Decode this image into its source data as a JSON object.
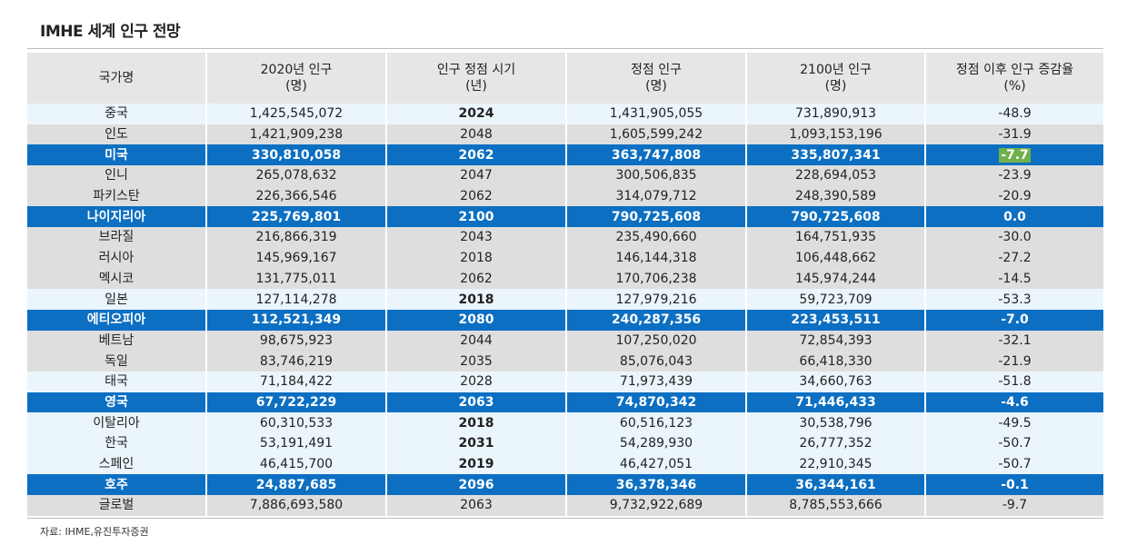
{
  "title": "IMHE 세계 인구 전망",
  "headers": [
    [
      "국가명",
      ""
    ],
    [
      "2020년 인구",
      "(명)"
    ],
    [
      "인구 정점 시기",
      "(년)"
    ],
    [
      "정점 인구",
      "(명)"
    ],
    [
      "2100년 인구",
      "(명)"
    ],
    [
      "정점 이후 인구 증감율",
      "(%)"
    ]
  ],
  "rows": [
    {
      "style": "light",
      "country": "중국",
      "pop2020": "1,425,545,072",
      "peak_year": "2024",
      "peak_year_bold": true,
      "peak_pop": "1,431,905,055",
      "pop2100": "731,890,913",
      "change": "-48.9"
    },
    {
      "style": "gray",
      "country": "인도",
      "pop2020": "1,421,909,238",
      "peak_year": "2048",
      "peak_pop": "1,605,599,242",
      "pop2100": "1,093,153,196",
      "change": "-31.9"
    },
    {
      "style": "blue",
      "country": "미국",
      "pop2020": "330,810,058",
      "peak_year": "2062",
      "peak_pop": "363,747,808",
      "pop2100": "335,807,341",
      "change": "-7.7",
      "change_highlight": true
    },
    {
      "style": "gray",
      "country": "인니",
      "pop2020": "265,078,632",
      "peak_year": "2047",
      "peak_pop": "300,506,835",
      "pop2100": "228,694,053",
      "change": "-23.9"
    },
    {
      "style": "gray",
      "country": "파키스탄",
      "pop2020": "226,366,546",
      "peak_year": "2062",
      "peak_pop": "314,079,712",
      "pop2100": "248,390,589",
      "change": "-20.9"
    },
    {
      "style": "blue",
      "country": "나이지리아",
      "pop2020": "225,769,801",
      "peak_year": "2100",
      "peak_pop": "790,725,608",
      "pop2100": "790,725,608",
      "change": "0.0"
    },
    {
      "style": "gray",
      "country": "브라질",
      "pop2020": "216,866,319",
      "peak_year": "2043",
      "peak_pop": "235,490,660",
      "pop2100": "164,751,935",
      "change": "-30.0"
    },
    {
      "style": "gray",
      "country": "러시아",
      "pop2020": "145,969,167",
      "peak_year": "2018",
      "peak_pop": "146,144,318",
      "pop2100": "106,448,662",
      "change": "-27.2"
    },
    {
      "style": "gray",
      "country": "멕시코",
      "pop2020": "131,775,011",
      "peak_year": "2062",
      "peak_pop": "170,706,238",
      "pop2100": "145,974,244",
      "change": "-14.5"
    },
    {
      "style": "light",
      "country": "일본",
      "pop2020": "127,114,278",
      "peak_year": "2018",
      "peak_year_bold": true,
      "peak_pop": "127,979,216",
      "pop2100": "59,723,709",
      "change": "-53.3"
    },
    {
      "style": "blue",
      "country": "에티오피아",
      "pop2020": "112,521,349",
      "peak_year": "2080",
      "peak_pop": "240,287,356",
      "pop2100": "223,453,511",
      "change": "-7.0"
    },
    {
      "style": "gray",
      "country": "베트남",
      "pop2020": "98,675,923",
      "peak_year": "2044",
      "peak_pop": "107,250,020",
      "pop2100": "72,854,393",
      "change": "-32.1"
    },
    {
      "style": "gray",
      "country": "독일",
      "pop2020": "83,746,219",
      "peak_year": "2035",
      "peak_pop": "85,076,043",
      "pop2100": "66,418,330",
      "change": "-21.9"
    },
    {
      "style": "light",
      "country": "태국",
      "pop2020": "71,184,422",
      "peak_year": "2028",
      "peak_pop": "71,973,439",
      "pop2100": "34,660,763",
      "change": "-51.8"
    },
    {
      "style": "blue",
      "country": "영국",
      "pop2020": "67,722,229",
      "peak_year": "2063",
      "peak_pop": "74,870,342",
      "pop2100": "71,446,433",
      "change": "-4.6"
    },
    {
      "style": "light",
      "country": "이탈리아",
      "pop2020": "60,310,533",
      "peak_year": "2018",
      "peak_year_bold": true,
      "peak_pop": "60,516,123",
      "pop2100": "30,538,796",
      "change": "-49.5"
    },
    {
      "style": "light",
      "country": "한국",
      "pop2020": "53,191,491",
      "peak_year": "2031",
      "peak_year_bold": true,
      "peak_pop": "54,289,930",
      "pop2100": "26,777,352",
      "change": "-50.7"
    },
    {
      "style": "light",
      "country": "스페인",
      "pop2020": "46,415,700",
      "peak_year": "2019",
      "peak_year_bold": true,
      "peak_pop": "46,427,051",
      "pop2100": "22,910,345",
      "change": "-50.7"
    },
    {
      "style": "blue",
      "country": "호주",
      "pop2020": "24,887,685",
      "peak_year": "2096",
      "peak_pop": "36,378,346",
      "pop2100": "36,344,161",
      "change": "-0.1"
    },
    {
      "style": "gray",
      "country": "글로벌",
      "pop2020": "7,886,693,580",
      "peak_year": "2063",
      "peak_pop": "9,732,922,689",
      "pop2100": "8,785,553,666",
      "change": "-9.7"
    }
  ],
  "source": "자료: IHME,유진투자증권",
  "colors": {
    "blue_row": "#0c6fc2",
    "light_row": "#ebf5fc",
    "gray_row": "#dedede",
    "header": "#e6e6e6",
    "highlight": "#6fb04b"
  }
}
